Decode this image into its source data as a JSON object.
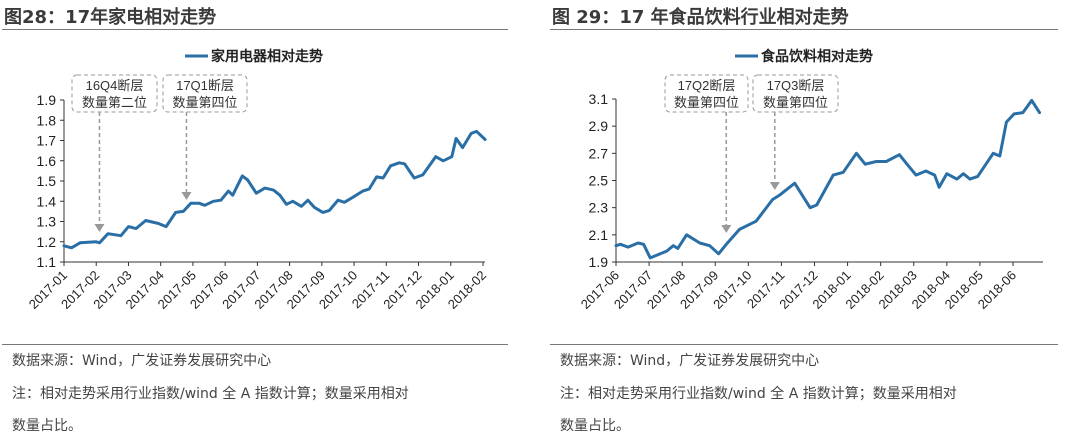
{
  "panels": [
    {
      "title": "图28：17年家电相对走势",
      "source": "数据来源：Wind，广发证券发展研究中心",
      "note_line1": "注：相对走势采用行业指数/wind 全 A 指数计算；数量采用相对",
      "note_line2": "数量占比。"
    },
    {
      "title": "图 29：17 年食品饮料行业相对走势",
      "source": "数据来源：Wind，广发证券发展研究中心",
      "note_line1": "注：相对走势采用行业指数/wind 全 A 指数计算；数量采用相对",
      "note_line2": "数量占比。"
    }
  ],
  "chart_data": [
    {
      "type": "line",
      "title": "",
      "legend": "top-center",
      "grid": false,
      "series_color": "#2a6ea6",
      "annotation_color": "#999999",
      "ylim": [
        1.1,
        1.9
      ],
      "yticks": [
        "1.1",
        "1.2",
        "1.3",
        "1.4",
        "1.5",
        "1.6",
        "1.7",
        "1.8",
        "1.9"
      ],
      "xticks": [
        "2017-01",
        "2017-02",
        "2017-03",
        "2017-04",
        "2017-05",
        "2017-06",
        "2017-07",
        "2017-08",
        "2017-09",
        "2017-10",
        "2017-11",
        "2017-12",
        "2018-01",
        "2018-02"
      ],
      "annotations": [
        {
          "line1": "16Q4断层",
          "line2": "数量第二位",
          "date": "2017-02-04"
        },
        {
          "line1": "17Q1断层",
          "line2": "数量第四位",
          "date": "2017-04-25"
        }
      ],
      "series": [
        {
          "name": "家用电器相对走势",
          "points": [
            [
              "2017-01-01",
              1.18
            ],
            [
              "2017-01-08",
              1.17
            ],
            [
              "2017-01-16",
              1.195
            ],
            [
              "2017-02-01",
              1.2
            ],
            [
              "2017-02-04",
              1.195
            ],
            [
              "2017-02-12",
              1.24
            ],
            [
              "2017-02-24",
              1.23
            ],
            [
              "2017-03-01",
              1.275
            ],
            [
              "2017-03-08",
              1.265
            ],
            [
              "2017-03-17",
              1.305
            ],
            [
              "2017-03-29",
              1.29
            ],
            [
              "2017-04-06",
              1.275
            ],
            [
              "2017-04-15",
              1.345
            ],
            [
              "2017-04-22",
              1.35
            ],
            [
              "2017-04-29",
              1.39
            ],
            [
              "2017-05-07",
              1.39
            ],
            [
              "2017-05-12",
              1.38
            ],
            [
              "2017-05-20",
              1.4
            ],
            [
              "2017-05-27",
              1.405
            ],
            [
              "2017-06-04",
              1.45
            ],
            [
              "2017-06-08",
              1.43
            ],
            [
              "2017-06-17",
              1.525
            ],
            [
              "2017-06-22",
              1.505
            ],
            [
              "2017-06-30",
              1.44
            ],
            [
              "2017-07-08",
              1.465
            ],
            [
              "2017-07-16",
              1.455
            ],
            [
              "2017-07-22",
              1.43
            ],
            [
              "2017-07-28",
              1.385
            ],
            [
              "2017-08-04",
              1.4
            ],
            [
              "2017-08-12",
              1.375
            ],
            [
              "2017-08-18",
              1.405
            ],
            [
              "2017-08-24",
              1.37
            ],
            [
              "2017-09-02",
              1.345
            ],
            [
              "2017-09-08",
              1.355
            ],
            [
              "2017-09-16",
              1.405
            ],
            [
              "2017-09-22",
              1.395
            ],
            [
              "2017-09-30",
              1.42
            ],
            [
              "2017-10-09",
              1.45
            ],
            [
              "2017-10-15",
              1.46
            ],
            [
              "2017-10-22",
              1.52
            ],
            [
              "2017-10-28",
              1.515
            ],
            [
              "2017-11-05",
              1.575
            ],
            [
              "2017-11-13",
              1.59
            ],
            [
              "2017-11-18",
              1.585
            ],
            [
              "2017-11-27",
              1.515
            ],
            [
              "2017-12-05",
              1.53
            ],
            [
              "2017-12-17",
              1.62
            ],
            [
              "2017-12-24",
              1.6
            ],
            [
              "2018-01-02",
              1.62
            ],
            [
              "2018-01-06",
              1.71
            ],
            [
              "2018-01-12",
              1.665
            ],
            [
              "2018-01-20",
              1.735
            ],
            [
              "2018-01-25",
              1.745
            ],
            [
              "2018-02-03",
              1.705
            ]
          ]
        }
      ]
    },
    {
      "type": "line",
      "title": "",
      "legend": "top-center",
      "grid": false,
      "series_color": "#2a6ea6",
      "annotation_color": "#999999",
      "ylim": [
        1.9,
        3.1
      ],
      "yticks": [
        "1.9",
        "2.1",
        "2.3",
        "2.5",
        "2.7",
        "2.9",
        "3.1"
      ],
      "xticks": [
        "2017-06",
        "2017-07",
        "2017-08",
        "2017-09",
        "2017-10",
        "2017-11",
        "2017-12",
        "2018-01",
        "2018-02",
        "2018-03",
        "2018-04",
        "2018-05",
        "2018-06"
      ],
      "annotations": [
        {
          "line1": "17Q2断层",
          "line2": "数量第四位",
          "date": "2017-09-11"
        },
        {
          "line1": "17Q3断层",
          "line2": "数量第四位",
          "date": "2017-10-25"
        }
      ],
      "series": [
        {
          "name": "食品饮料相对走势",
          "points": [
            [
              "2017-06-01",
              2.02
            ],
            [
              "2017-06-05",
              2.03
            ],
            [
              "2017-06-12",
              2.01
            ],
            [
              "2017-06-21",
              2.04
            ],
            [
              "2017-06-26",
              2.03
            ],
            [
              "2017-07-02",
              1.93
            ],
            [
              "2017-07-17",
              1.98
            ],
            [
              "2017-07-23",
              2.02
            ],
            [
              "2017-07-27",
              2.0
            ],
            [
              "2017-08-05",
              2.1
            ],
            [
              "2017-08-17",
              2.04
            ],
            [
              "2017-08-26",
              2.02
            ],
            [
              "2017-09-04",
              1.96
            ],
            [
              "2017-09-11",
              2.03
            ],
            [
              "2017-09-23",
              2.14
            ],
            [
              "2017-10-08",
              2.2
            ],
            [
              "2017-10-23",
              2.36
            ],
            [
              "2017-10-29",
              2.39
            ],
            [
              "2017-11-13",
              2.48
            ],
            [
              "2017-11-27",
              2.3
            ],
            [
              "2017-12-03",
              2.32
            ],
            [
              "2017-12-18",
              2.54
            ],
            [
              "2017-12-27",
              2.56
            ],
            [
              "2018-01-09",
              2.7
            ],
            [
              "2018-01-17",
              2.62
            ],
            [
              "2018-01-27",
              2.64
            ],
            [
              "2018-02-06",
              2.64
            ],
            [
              "2018-02-18",
              2.69
            ],
            [
              "2018-02-27",
              2.6
            ],
            [
              "2018-03-03",
              2.54
            ],
            [
              "2018-03-12",
              2.57
            ],
            [
              "2018-03-20",
              2.54
            ],
            [
              "2018-03-24",
              2.45
            ],
            [
              "2018-03-31",
              2.55
            ],
            [
              "2018-04-10",
              2.51
            ],
            [
              "2018-04-16",
              2.55
            ],
            [
              "2018-04-22",
              2.51
            ],
            [
              "2018-04-29",
              2.53
            ],
            [
              "2018-05-13",
              2.7
            ],
            [
              "2018-05-19",
              2.68
            ],
            [
              "2018-05-25",
              2.93
            ],
            [
              "2018-06-02",
              2.99
            ],
            [
              "2018-06-10",
              3.0
            ],
            [
              "2018-06-18",
              3.09
            ],
            [
              "2018-06-25",
              3.0
            ]
          ]
        }
      ]
    }
  ]
}
